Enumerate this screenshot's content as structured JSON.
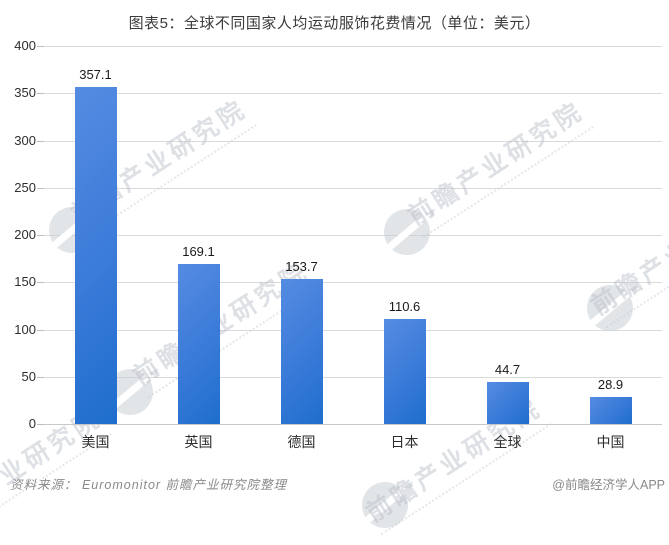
{
  "title": "图表5：全球不同国家人均运动服饰花费情况（单位：美元）",
  "chart_data": {
    "type": "bar",
    "title": "图表5：全球不同国家人均运动服饰花费情况（单位：美元）",
    "categories": [
      "美国",
      "英国",
      "德国",
      "日本",
      "全球",
      "中国"
    ],
    "values": [
      357.1,
      169.1,
      153.7,
      110.6,
      44.7,
      28.9
    ],
    "xlabel": "",
    "ylabel": "",
    "ylim": [
      0,
      400
    ],
    "yticks": [
      0,
      50,
      100,
      150,
      200,
      250,
      300,
      350,
      400
    ],
    "grid": true,
    "legend": "none",
    "bar_color_top": "#558ce2",
    "bar_color_bottom": "#1e6ecd",
    "gridline_color": "#dadada"
  },
  "footer": {
    "source": "资料来源： Euromonitor  前瞻产业研究院整理",
    "credit": "@前瞻经济学人APP"
  },
  "watermark": {
    "text": "前瞻产业研究院"
  }
}
